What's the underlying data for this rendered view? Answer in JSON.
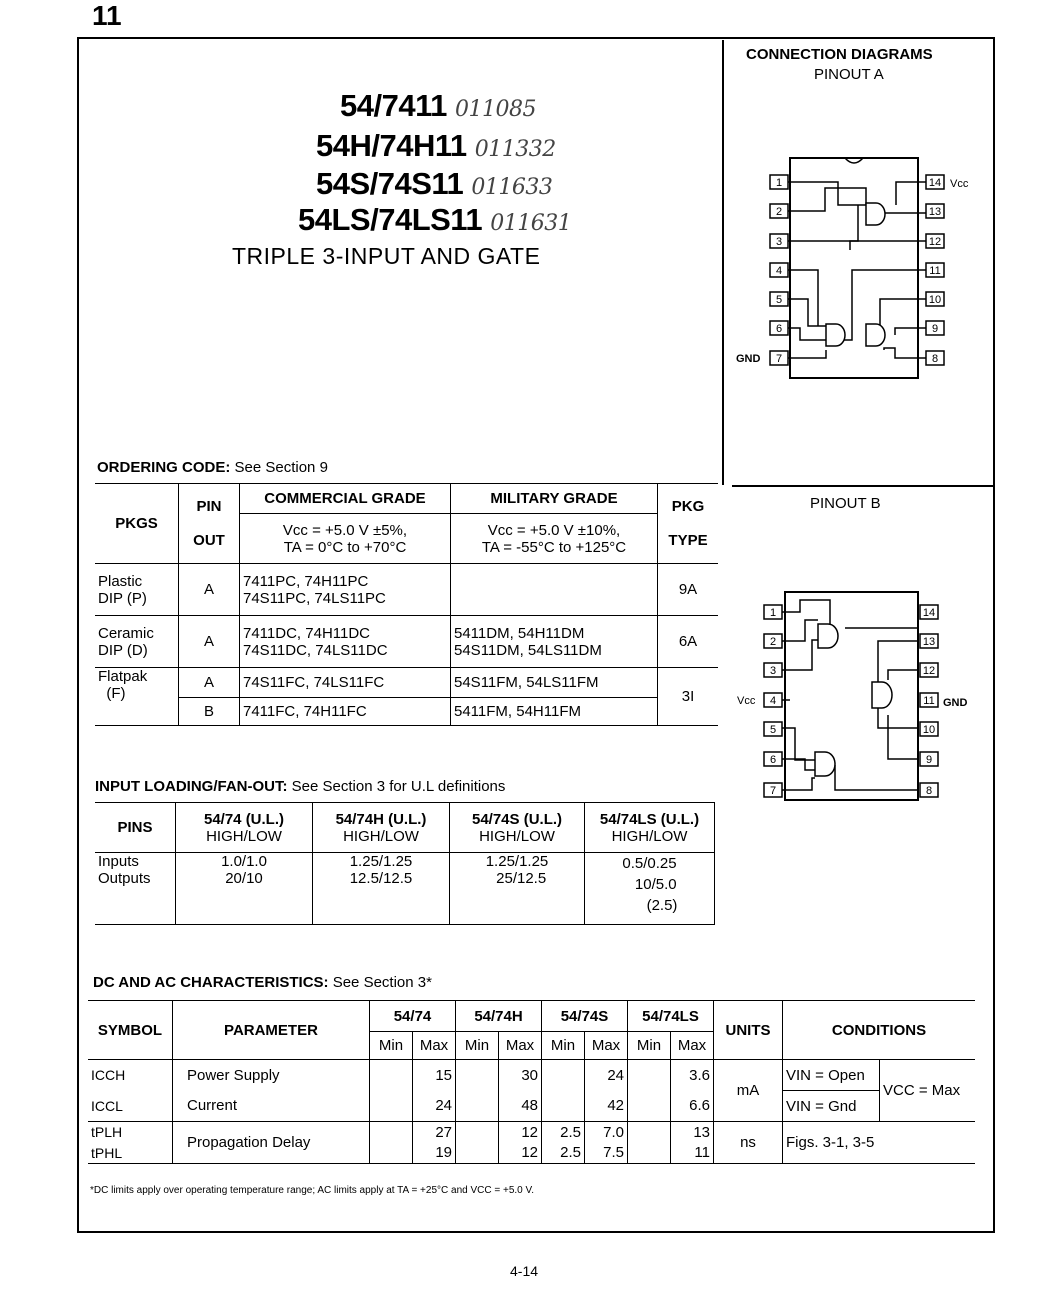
{
  "page_number": "11",
  "titles": [
    {
      "text": "54/7411",
      "note": "011085"
    },
    {
      "text": "54H/74H11",
      "note": "011332"
    },
    {
      "text": "54S/74S11",
      "note": "011633"
    },
    {
      "text": "54LS/74LS11",
      "note": "011631"
    }
  ],
  "subtitle": "TRIPLE 3-INPUT AND GATE",
  "connection": {
    "heading": "CONNECTION DIAGRAMS",
    "pinout_a": "PINOUT A",
    "pinout_b": "PINOUT B",
    "vcc": "Vcc",
    "gnd": "GND",
    "left_pins": [
      "1",
      "2",
      "3",
      "4",
      "5",
      "6",
      "7"
    ],
    "right_pins": [
      "14",
      "13",
      "12",
      "11",
      "10",
      "9",
      "8"
    ]
  },
  "ordering": {
    "heading_bold": "ORDERING CODE:",
    "heading_rest": " See Section 9",
    "headers": {
      "pkgs": "PKGS",
      "pin": "PIN",
      "out": "OUT",
      "commercial": "COMMERCIAL GRADE",
      "military": "MILITARY GRADE",
      "pkg": "PKG",
      "type": "TYPE",
      "commercial_cond1": "Vcc = +5.0 V ±5%,",
      "commercial_cond2": "TA = 0°C to +70°C",
      "military_cond1": "Vcc = +5.0 V ±10%,",
      "military_cond2": "TA = -55°C to +125°C"
    },
    "rows": [
      {
        "pkg1": "Plastic",
        "pkg2": "DIP (P)",
        "pin": "A",
        "com1": "7411PC, 74H11PC",
        "com2": "74S11PC, 74LS11PC",
        "mil1": "",
        "mil2": "",
        "type": "9A"
      },
      {
        "pkg1": "Ceramic",
        "pkg2": "DIP (D)",
        "pin": "A",
        "com1": "7411DC, 74H11DC",
        "com2": "74S11DC, 74LS11DC",
        "mil1": "5411DM, 54H11DM",
        "mil2": "54S11DM, 54LS11DM",
        "type": "6A"
      },
      {
        "pkg1": "Flatpak",
        "pkg2": "(F)",
        "pin": "A",
        "com1": "74S11FC, 74LS11FC",
        "mil1": "54S11FM, 54LS11FM",
        "pin_b": "B",
        "com_b": "7411FC, 74H11FC",
        "mil_b": "5411FM, 54H11FM",
        "type": "3I"
      }
    ]
  },
  "loading": {
    "heading_bold": "INPUT LOADING/FAN-OUT:",
    "heading_rest": " See Section 3 for U.L definitions",
    "headers": [
      "PINS",
      "54/74 (U.L.)",
      "54/74H (U.L.)",
      "54/74S (U.L.)",
      "54/74LS (U.L.)"
    ],
    "sub": "HIGH/LOW",
    "rows": [
      {
        "pin": "Inputs",
        "v": [
          "1.0/1.0",
          "1.25/1.25",
          "1.25/1.25",
          "0.5/0.25"
        ]
      },
      {
        "pin": "Outputs",
        "v": [
          "20/10",
          "12.5/12.5",
          "25/12.5",
          "10/5.0"
        ]
      }
    ],
    "extra": "(2.5)"
  },
  "dcac": {
    "heading_bold": "DC AND AC CHARACTERISTICS:",
    "heading_rest": " See Section 3*",
    "headers": {
      "symbol": "SYMBOL",
      "parameter": "PARAMETER",
      "families": [
        "54/74",
        "54/74H",
        "54/74S",
        "54/74LS"
      ],
      "min": "Min",
      "max": "Max",
      "units": "UNITS",
      "conditions": "CONDITIONS"
    },
    "rows": [
      {
        "symbol": "ICCH",
        "param": "Power Supply",
        "vals": [
          "",
          "15",
          "",
          "30",
          "",
          "24",
          "",
          "3.6"
        ]
      },
      {
        "symbol": "ICCL",
        "param": "Current",
        "vals": [
          "",
          "24",
          "",
          "48",
          "",
          "42",
          "",
          "6.6"
        ]
      },
      {
        "symbol": "tPLH",
        "param": "Propagation Delay",
        "vals": [
          "",
          "27",
          "",
          "12",
          "2.5",
          "7.0",
          "",
          "13"
        ]
      },
      {
        "symbol": "tPHL",
        "param": "",
        "vals": [
          "",
          "19",
          "",
          "12",
          "2.5",
          "7.5",
          "",
          "11"
        ]
      }
    ],
    "units_power": "mA",
    "units_delay": "ns",
    "cond_open": "VIN = Open",
    "cond_gnd": "VIN = Gnd",
    "cond_vcc": "VCC = Max",
    "cond_delay": "Figs. 3-1, 3-5"
  },
  "footnote": "*DC limits apply over operating temperature range; AC limits apply at TA = +25°C and VCC = +5.0 V.",
  "footer_page": "4-14"
}
